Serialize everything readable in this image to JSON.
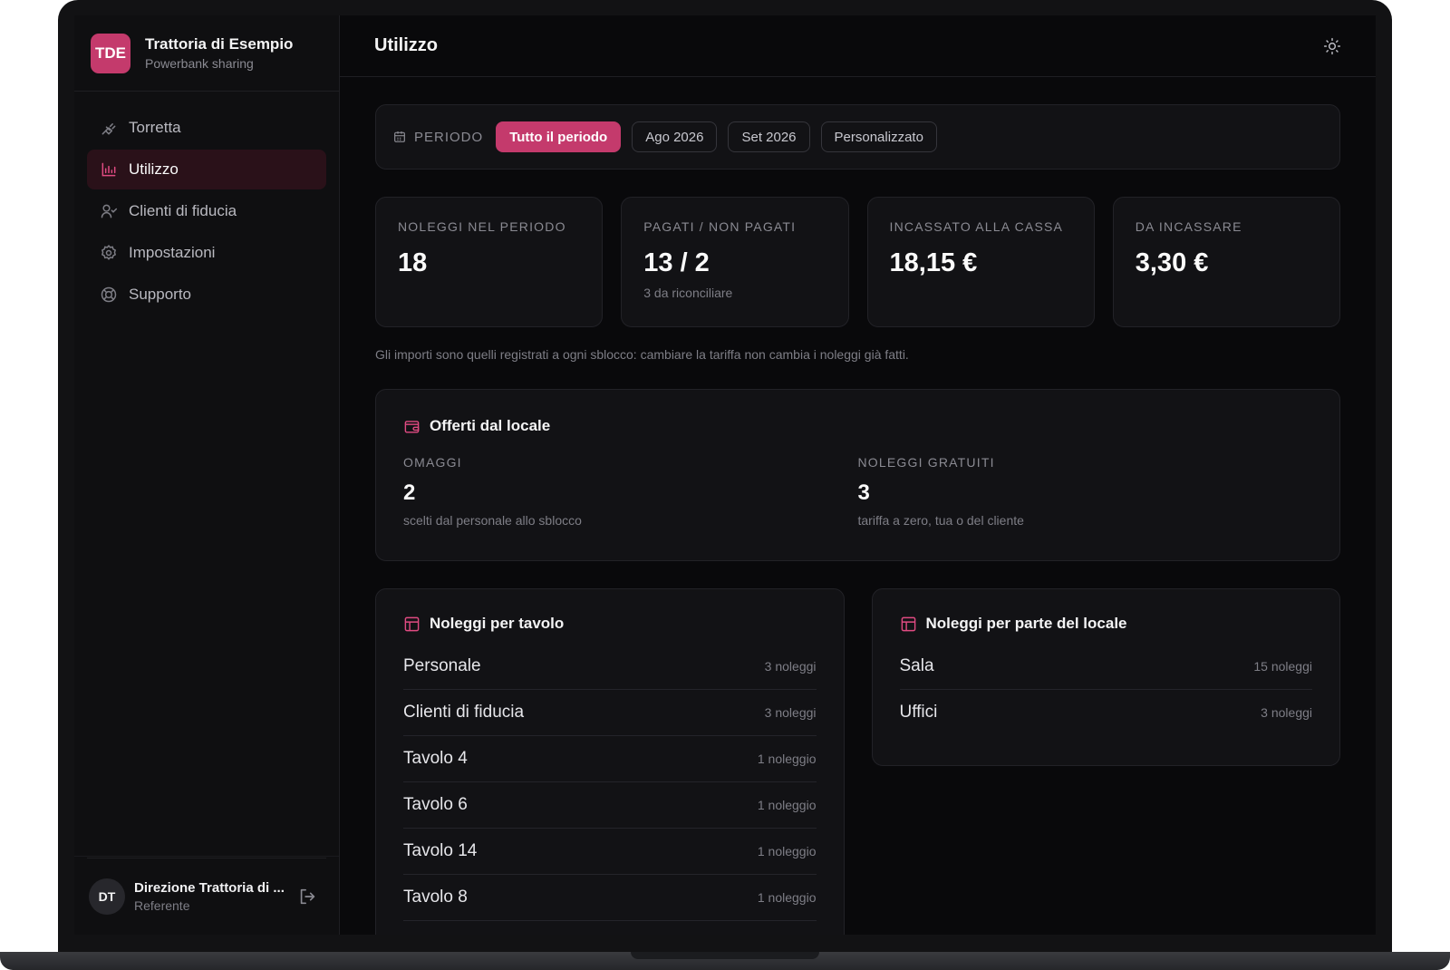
{
  "brand": {
    "initials": "TDE",
    "name": "Trattoria di Esempio",
    "subtitle": "Powerbank sharing"
  },
  "nav": {
    "items": [
      {
        "label": "Torretta",
        "icon": "plug-icon",
        "active": false
      },
      {
        "label": "Utilizzo",
        "icon": "bar-chart-icon",
        "active": true
      },
      {
        "label": "Clienti di fiducia",
        "icon": "user-check-icon",
        "active": false
      },
      {
        "label": "Impostazioni",
        "icon": "gear-icon",
        "active": false
      },
      {
        "label": "Supporto",
        "icon": "lifebuoy-icon",
        "active": false
      }
    ]
  },
  "user": {
    "initials": "DT",
    "name": "Direzione Trattoria di ...",
    "role": "Referente"
  },
  "header": {
    "title": "Utilizzo"
  },
  "period": {
    "label": "PERIODO",
    "options": [
      "Tutto il periodo",
      "Ago 2026",
      "Set 2026",
      "Personalizzato"
    ],
    "selected": "Tutto il periodo"
  },
  "stats": [
    {
      "label": "NOLEGGI NEL PERIODO",
      "value": "18",
      "sub": ""
    },
    {
      "label": "PAGATI / NON PAGATI",
      "value": "13 / 2",
      "sub": "3 da riconciliare"
    },
    {
      "label": "INCASSATO ALLA CASSA",
      "value": "18,15 €",
      "sub": ""
    },
    {
      "label": "DA INCASSARE",
      "value": "3,30 €",
      "sub": ""
    }
  ],
  "note": "Gli importi sono quelli registrati a ogni sblocco: cambiare la tariffa non cambia i noleggi già fatti.",
  "offers": {
    "title": "Offerti dal locale",
    "omaggi": {
      "label": "OMAGGI",
      "value": "2",
      "sub": "scelti dal personale allo sblocco"
    },
    "gratuiti": {
      "label": "NOLEGGI GRATUITI",
      "value": "3",
      "sub": "tariffa a zero, tua o del cliente"
    }
  },
  "by_table": {
    "title": "Noleggi per tavolo",
    "rows": [
      {
        "name": "Personale",
        "count": "3 noleggi"
      },
      {
        "name": "Clienti di fiducia",
        "count": "3 noleggi"
      },
      {
        "name": "Tavolo 4",
        "count": "1 noleggio"
      },
      {
        "name": "Tavolo 6",
        "count": "1 noleggio"
      },
      {
        "name": "Tavolo 14",
        "count": "1 noleggio"
      },
      {
        "name": "Tavolo 8",
        "count": "1 noleggio"
      }
    ]
  },
  "by_area": {
    "title": "Noleggi per parte del locale",
    "rows": [
      {
        "name": "Sala",
        "count": "15 noleggi"
      },
      {
        "name": "Uffici",
        "count": "3 noleggi"
      }
    ]
  },
  "colors": {
    "accent": "#c43a6c",
    "background": "#09090b",
    "card": "#121215"
  }
}
